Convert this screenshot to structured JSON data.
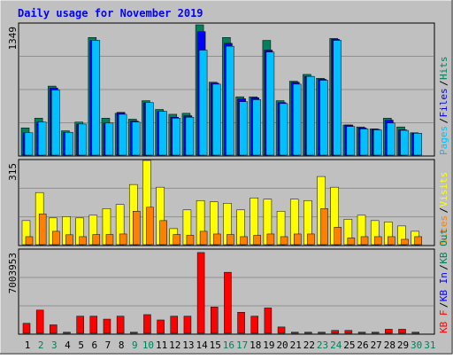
{
  "title": "Daily usage for November 2019",
  "colors": {
    "background": "#c0c0c0",
    "plot": "#c0c0c0",
    "title": "#0000ff",
    "hits": "#00805c",
    "files": "#0000ff",
    "pages": "#00c0ff",
    "visits": "#ffff00",
    "sites": "#ff8000",
    "kbytes": "#ff0000",
    "kbin": "#0000ff",
    "kbout": "#00805c",
    "weekend": "#00805c",
    "weekday": "#000000"
  },
  "chart_data": [
    {
      "type": "bar",
      "name": "hits-files-pages",
      "ymax_label": "1349",
      "ylim": [
        0,
        1349
      ],
      "legend": [
        {
          "label": "Pages",
          "color": "#00c0ff"
        },
        {
          "label": "Files",
          "color": "#0000ff"
        },
        {
          "label": "Hits",
          "color": "#00805c"
        }
      ],
      "series": [
        {
          "key": "hits",
          "values": [
            280,
            380,
            710,
            250,
            340,
            1210,
            380,
            430,
            370,
            560,
            470,
            420,
            430,
            1340,
            750,
            1210,
            600,
            600,
            1180,
            560,
            760,
            830,
            790,
            1200,
            310,
            290,
            270,
            380,
            290,
            230
          ]
        },
        {
          "key": "files",
          "values": [
            230,
            340,
            690,
            235,
            320,
            1180,
            330,
            440,
            350,
            540,
            450,
            390,
            405,
            1270,
            740,
            1150,
            580,
            590,
            1080,
            540,
            750,
            810,
            780,
            1190,
            310,
            280,
            265,
            360,
            260,
            225
          ]
        },
        {
          "key": "pages",
          "values": [
            230,
            340,
            670,
            235,
            320,
            1180,
            330,
            420,
            340,
            540,
            450,
            380,
            390,
            1080,
            730,
            1120,
            550,
            570,
            1060,
            530,
            730,
            810,
            770,
            1180,
            295,
            270,
            260,
            330,
            255,
            225
          ]
        }
      ]
    },
    {
      "type": "bar",
      "name": "visits-sites",
      "ymax_label": "315",
      "ylim": [
        0,
        315
      ],
      "legend": [
        {
          "label": "Sites",
          "color": "#ff8000"
        },
        {
          "label": "Visits",
          "color": "#ffff00"
        }
      ],
      "series": [
        {
          "key": "visits",
          "values": [
            90,
            195,
            100,
            105,
            100,
            110,
            135,
            150,
            225,
            315,
            215,
            60,
            130,
            165,
            160,
            155,
            130,
            175,
            170,
            125,
            170,
            165,
            255,
            215,
            95,
            110,
            90,
            85,
            70,
            50
          ]
        },
        {
          "key": "sites",
          "values": [
            30,
            115,
            50,
            37,
            30,
            38,
            38,
            40,
            125,
            140,
            90,
            38,
            35,
            50,
            40,
            38,
            30,
            35,
            40,
            30,
            40,
            40,
            135,
            65,
            25,
            30,
            30,
            30,
            20,
            30
          ]
        }
      ]
    },
    {
      "type": "bar",
      "name": "kbytes",
      "ymax_label": "7003953",
      "ylim": [
        0,
        7003953
      ],
      "legend": [
        {
          "label": "KB F",
          "color": "#ff0000"
        },
        {
          "label": "KB In",
          "color": "#0000ff"
        },
        {
          "label": "KB Out",
          "color": "#00805c"
        }
      ],
      "series": [
        {
          "key": "kbytes",
          "values": [
            840000,
            1950000,
            710000,
            90000,
            1440000,
            1440000,
            1190000,
            1440000,
            90000,
            1570000,
            1120000,
            1440000,
            1440000,
            6790000,
            2210000,
            5130000,
            1770000,
            1440000,
            2130000,
            530000,
            90000,
            90000,
            90000,
            240000,
            240000,
            90000,
            90000,
            340000,
            340000,
            90000
          ]
        }
      ]
    }
  ],
  "days": {
    "labels": [
      "1",
      "2",
      "3",
      "4",
      "5",
      "6",
      "7",
      "8",
      "9",
      "10",
      "11",
      "12",
      "13",
      "14",
      "15",
      "16",
      "17",
      "18",
      "19",
      "20",
      "21",
      "22",
      "23",
      "24",
      "25",
      "26",
      "27",
      "28",
      "29",
      "30",
      "31"
    ],
    "weekend": [
      2,
      3,
      9,
      10,
      16,
      17,
      23,
      24,
      30,
      31
    ]
  }
}
